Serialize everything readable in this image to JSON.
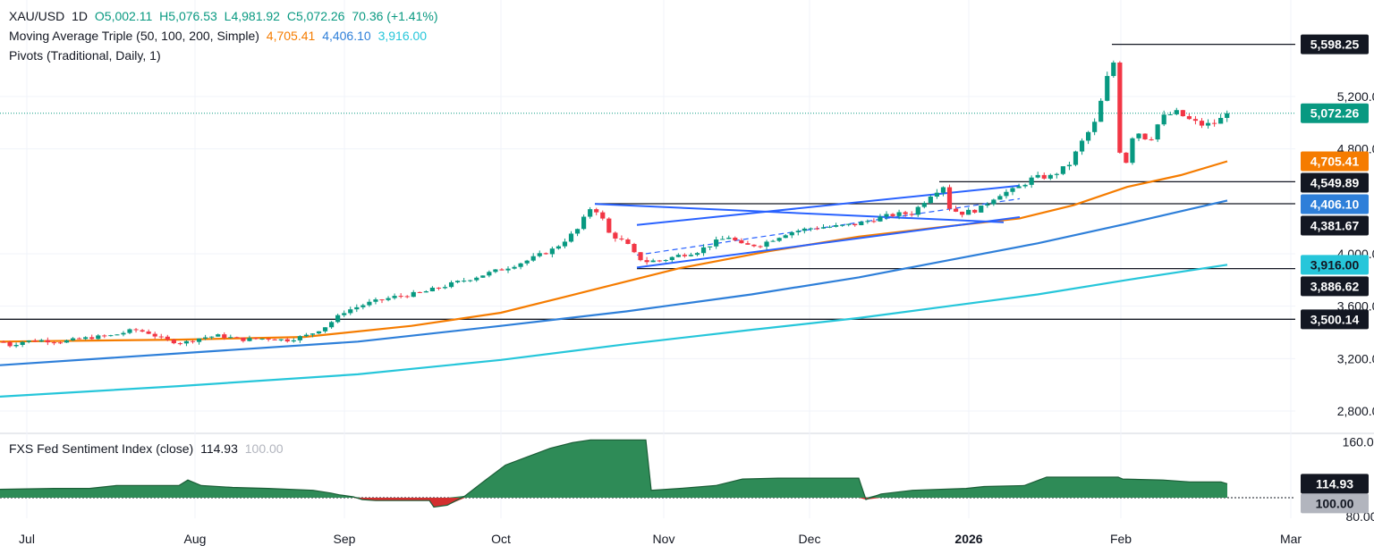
{
  "header": {
    "symbol": "XAU/USD",
    "interval": "1D",
    "open": "O5,002.11",
    "high": "H5,076.53",
    "low": "L4,981.92",
    "close": "C5,072.26",
    "change": "70.36 (+1.41%)"
  },
  "ma_legend": {
    "label": "Moving Average Triple (50, 100, 200, Simple)",
    "ma50": "4,705.41",
    "ma100": "4,406.10",
    "ma200": "3,916.00"
  },
  "pivots_legend": {
    "label": "Pivots (Traditional, Daily, 1)"
  },
  "indicator_legend": {
    "label": "FXS Fed Sentiment Index (close)",
    "value": "114.93",
    "baseline": "100.00"
  },
  "colors": {
    "up": "#089981",
    "down": "#f23645",
    "ma50": "#f57c00",
    "ma100": "#2e7fd9",
    "ma200": "#26c6da",
    "channel": "#2962ff",
    "sentiment_positive": "#2e8b57",
    "sentiment_negative": "#d32f2f"
  },
  "chart_data": {
    "type": "candlestick",
    "x_labels": [
      "Jul",
      "Aug",
      "Sep",
      "Oct",
      "Nov",
      "Dec",
      "2026",
      "Feb",
      "Mar"
    ],
    "y_ticks": [
      "5,200.00",
      "4,800.00",
      "4,000.00",
      "3,600.00",
      "3,200.00",
      "2,800.00"
    ],
    "y_range": [
      2650,
      5800
    ],
    "price_labels": [
      {
        "text": "5,598.25",
        "value": 5598.25,
        "style": "level"
      },
      {
        "text": "5,072.26",
        "value": 5072.26,
        "style": "last"
      },
      {
        "text": "4,705.41",
        "value": 4705.41,
        "style": "ma50"
      },
      {
        "text": "4,549.89",
        "value": 4549.89,
        "style": "level"
      },
      {
        "text": "4,406.10",
        "value": 4406.1,
        "style": "ma100"
      },
      {
        "text": "4,381.67",
        "value": 4381.67,
        "style": "level"
      },
      {
        "text": "3,916.00",
        "value": 3916.0,
        "style": "ma200"
      },
      {
        "text": "3,886.62",
        "value": 3886.62,
        "style": "level"
      },
      {
        "text": "3,500.14",
        "value": 3500.14,
        "style": "level"
      }
    ],
    "horizontal_levels": [
      5598.25,
      4549.89,
      4381.67,
      3886.62,
      3500.14
    ],
    "last_price": 5072.26,
    "price_path": [
      [
        0,
        3345
      ],
      [
        10,
        3300
      ],
      [
        25,
        3330
      ],
      [
        45,
        3340
      ],
      [
        70,
        3330
      ],
      [
        100,
        3360
      ],
      [
        125,
        3375
      ],
      [
        150,
        3420
      ],
      [
        165,
        3400
      ],
      [
        185,
        3340
      ],
      [
        205,
        3320
      ],
      [
        225,
        3360
      ],
      [
        245,
        3375
      ],
      [
        270,
        3345
      ],
      [
        300,
        3355
      ],
      [
        320,
        3340
      ],
      [
        345,
        3380
      ],
      [
        365,
        3450
      ],
      [
        385,
        3560
      ],
      [
        410,
        3620
      ],
      [
        440,
        3670
      ],
      [
        470,
        3700
      ],
      [
        500,
        3760
      ],
      [
        530,
        3820
      ],
      [
        560,
        3880
      ],
      [
        590,
        3950
      ],
      [
        620,
        4040
      ],
      [
        645,
        4180
      ],
      [
        660,
        4350
      ],
      [
        670,
        4320
      ],
      [
        680,
        4160
      ],
      [
        700,
        4080
      ],
      [
        710,
        3990
      ],
      [
        720,
        3940
      ],
      [
        740,
        3950
      ],
      [
        760,
        3990
      ],
      [
        780,
        4020
      ],
      [
        800,
        4090
      ],
      [
        815,
        4130
      ],
      [
        830,
        4060
      ],
      [
        850,
        4070
      ],
      [
        880,
        4160
      ],
      [
        910,
        4200
      ],
      [
        940,
        4210
      ],
      [
        960,
        4230
      ],
      [
        980,
        4270
      ],
      [
        1000,
        4300
      ],
      [
        1020,
        4310
      ],
      [
        1040,
        4450
      ],
      [
        1055,
        4520
      ],
      [
        1062,
        4340
      ],
      [
        1075,
        4310
      ],
      [
        1095,
        4340
      ],
      [
        1115,
        4450
      ],
      [
        1135,
        4490
      ],
      [
        1155,
        4580
      ],
      [
        1175,
        4590
      ],
      [
        1195,
        4680
      ],
      [
        1210,
        4860
      ],
      [
        1225,
        5010
      ],
      [
        1238,
        5350
      ],
      [
        1246,
        5480
      ],
      [
        1251,
        4800
      ],
      [
        1258,
        4680
      ],
      [
        1268,
        4950
      ],
      [
        1285,
        4860
      ],
      [
        1298,
        5040
      ],
      [
        1315,
        5080
      ],
      [
        1330,
        5020
      ],
      [
        1345,
        4980
      ],
      [
        1360,
        5000
      ],
      [
        1372,
        5072
      ]
    ],
    "moving_averages": [
      {
        "name": "50",
        "points": [
          [
            0,
            3330
          ],
          [
            200,
            3345
          ],
          [
            340,
            3365
          ],
          [
            460,
            3450
          ],
          [
            560,
            3550
          ],
          [
            660,
            3720
          ],
          [
            760,
            3890
          ],
          [
            860,
            4020
          ],
          [
            960,
            4130
          ],
          [
            1060,
            4210
          ],
          [
            1140,
            4270
          ],
          [
            1200,
            4370
          ],
          [
            1260,
            4510
          ],
          [
            1320,
            4600
          ],
          [
            1372,
            4705.41
          ]
        ]
      },
      {
        "name": "100",
        "points": [
          [
            0,
            3150
          ],
          [
            200,
            3240
          ],
          [
            400,
            3330
          ],
          [
            560,
            3450
          ],
          [
            700,
            3560
          ],
          [
            840,
            3690
          ],
          [
            960,
            3820
          ],
          [
            1060,
            3950
          ],
          [
            1160,
            4080
          ],
          [
            1260,
            4230
          ],
          [
            1372,
            4406.1
          ]
        ]
      },
      {
        "name": "200",
        "points": [
          [
            0,
            2910
          ],
          [
            200,
            2990
          ],
          [
            400,
            3080
          ],
          [
            560,
            3190
          ],
          [
            700,
            3310
          ],
          [
            840,
            3420
          ],
          [
            960,
            3510
          ],
          [
            1060,
            3600
          ],
          [
            1160,
            3690
          ],
          [
            1260,
            3800
          ],
          [
            1372,
            3916.0
          ]
        ]
      }
    ],
    "channel_lines": [
      {
        "style": "solid",
        "from": [
          665,
          4380
        ],
        "to": [
          1122,
          4240
        ]
      },
      {
        "style": "solid",
        "from": [
          712,
          4220
        ],
        "to": [
          1140,
          4520
        ]
      },
      {
        "style": "solid",
        "from": [
          712,
          3895
        ],
        "to": [
          1140,
          4280
        ]
      },
      {
        "style": "dashed",
        "from": [
          712,
          3990
        ],
        "to": [
          1140,
          4420
        ]
      }
    ],
    "indicator": {
      "name": "FXS Fed Sentiment Index (close)",
      "y_ticks": [
        "160.00",
        "80.00"
      ],
      "y_range": [
        78,
        168
      ],
      "baseline": 100.0,
      "last": 114.93,
      "labels": [
        {
          "text": "114.93",
          "value": 114.93,
          "style": "value"
        },
        {
          "text": "100.00",
          "value": 100.0,
          "style": "baseline"
        }
      ],
      "points": [
        [
          0,
          109
        ],
        [
          60,
          110
        ],
        [
          100,
          110
        ],
        [
          130,
          113
        ],
        [
          200,
          113
        ],
        [
          210,
          119
        ],
        [
          225,
          113
        ],
        [
          260,
          111
        ],
        [
          300,
          110
        ],
        [
          350,
          108
        ],
        [
          370,
          105
        ],
        [
          380,
          103
        ],
        [
          395,
          101
        ],
        [
          405,
          98
        ],
        [
          420,
          97
        ],
        [
          480,
          97
        ],
        [
          485,
          90
        ],
        [
          500,
          92
        ],
        [
          520,
          102
        ],
        [
          540,
          117
        ],
        [
          565,
          135
        ],
        [
          590,
          144
        ],
        [
          615,
          153
        ],
        [
          640,
          159
        ],
        [
          660,
          162
        ],
        [
          722,
          162
        ],
        [
          728,
          108
        ],
        [
          760,
          110
        ],
        [
          800,
          113
        ],
        [
          830,
          120
        ],
        [
          870,
          121
        ],
        [
          960,
          121
        ],
        [
          968,
          98
        ],
        [
          985,
          104
        ],
        [
          1020,
          108
        ],
        [
          1080,
          110
        ],
        [
          1100,
          112
        ],
        [
          1145,
          113
        ],
        [
          1170,
          122
        ],
        [
          1250,
          122
        ],
        [
          1255,
          120
        ],
        [
          1300,
          119
        ],
        [
          1330,
          117
        ],
        [
          1365,
          117
        ],
        [
          1372,
          114.93
        ]
      ]
    }
  }
}
